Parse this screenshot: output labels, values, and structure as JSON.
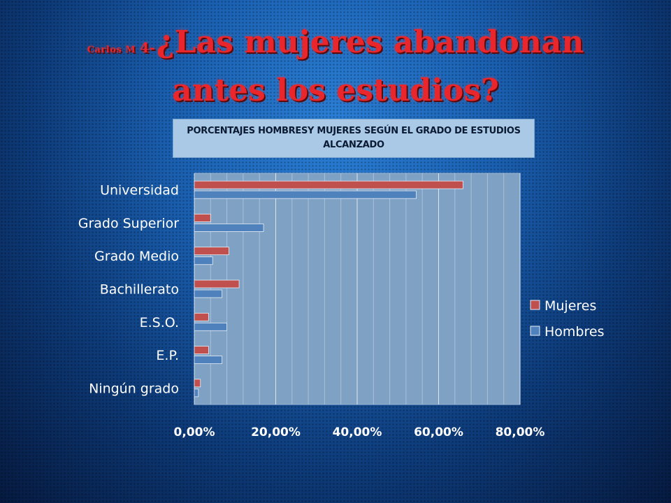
{
  "title": {
    "prefix": "Carlos M",
    "number": "4-",
    "main": "¿Las mujeres abandonan antes los estudios?"
  },
  "chart_data": {
    "type": "bar",
    "orientation": "horizontal",
    "title": "PORCENTAJES HOMBRESY MUJERES SEGÚN EL GRADO DE ESTUDIOS ALCANZADO",
    "categories": [
      "Universidad",
      "Grado Superior",
      "Grado Medio",
      "Bachillerato",
      "E.S.O.",
      "E.P.",
      "Ningún grado"
    ],
    "series": [
      {
        "name": "Mujeres",
        "color": "#c0504d",
        "values": [
          66.0,
          4.0,
          8.5,
          11.0,
          3.5,
          3.5,
          1.5
        ]
      },
      {
        "name": "Hombres",
        "color": "#4f81bd",
        "values": [
          54.5,
          17.0,
          4.5,
          6.8,
          8.0,
          6.8,
          1.0
        ]
      }
    ],
    "xlim": [
      0,
      80
    ],
    "xticks": [
      "0,00%",
      "20,00%",
      "40,00%",
      "60,00%",
      "80,00%"
    ],
    "grid": true,
    "legend": "right",
    "plot_bg": "#7fa1c4"
  }
}
